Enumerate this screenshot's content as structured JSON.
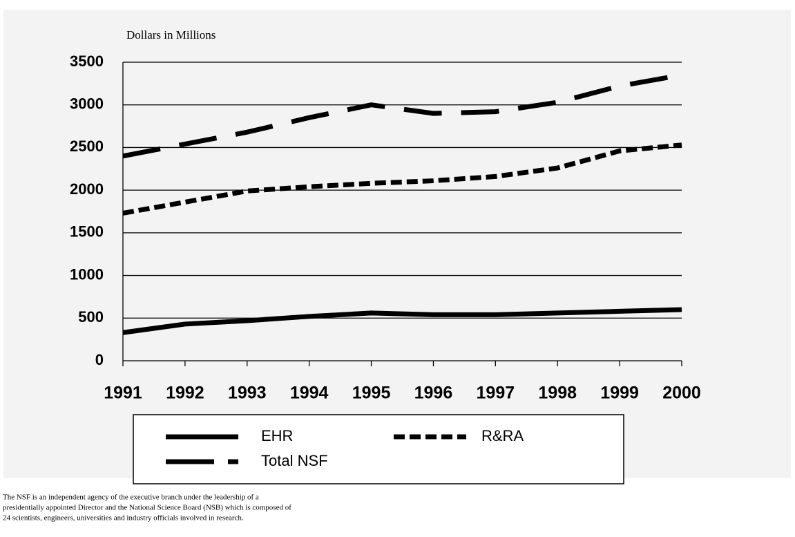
{
  "chart_data": {
    "type": "line",
    "subtitle": "Dollars in Millions",
    "x": [
      "1991",
      "1992",
      "1993",
      "1994",
      "1995",
      "1996",
      "1997",
      "1998",
      "1999",
      "2000"
    ],
    "series": [
      {
        "name": "EHR",
        "color": "#000000",
        "line_style": "solid",
        "values": [
          330,
          430,
          470,
          520,
          560,
          540,
          540,
          560,
          580,
          600
        ]
      },
      {
        "name": "R&RA",
        "color": "#000000",
        "line_style": "dashed",
        "values": [
          1730,
          1860,
          1990,
          2040,
          2080,
          2110,
          2160,
          2260,
          2460,
          2530
        ]
      },
      {
        "name": "Total NSF",
        "color": "#000000",
        "line_style": "long-dash",
        "values": [
          2400,
          2540,
          2680,
          2850,
          3000,
          2900,
          2920,
          3030,
          3220,
          3350
        ]
      }
    ],
    "ylim": [
      0,
      3500
    ],
    "yticks": [
      0,
      500,
      1000,
      1500,
      2000,
      2500,
      3000,
      3500
    ],
    "grid": true,
    "footnote": [
      "The NSF is an independent agency of the executive branch under the leadership of a",
      "presidentially appointed Director and the National Science Board (NSB) which is composed of",
      "24 scientists, engineers, universities and industry officials involved in research."
    ]
  }
}
